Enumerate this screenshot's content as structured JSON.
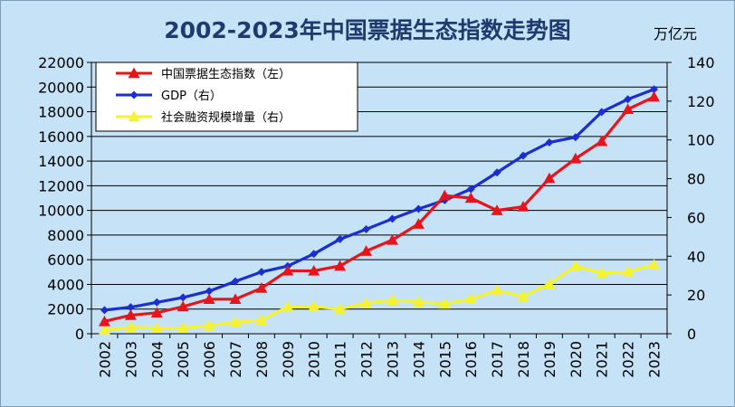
{
  "chart_data": {
    "type": "line",
    "title": "2002-2023年中国票据生态指数走势图",
    "right_axis_unit": "万亿元",
    "categories": [
      "2002",
      "2003",
      "2004",
      "2005",
      "2006",
      "2007",
      "2008",
      "2009",
      "2010",
      "2011",
      "2012",
      "2013",
      "2014",
      "2015",
      "2016",
      "2017",
      "2018",
      "2019",
      "2020",
      "2021",
      "2022",
      "2023"
    ],
    "left_axis": {
      "min": 0,
      "max": 22000,
      "step": 2000,
      "ticks": [
        "0",
        "2000",
        "4000",
        "6000",
        "8000",
        "10000",
        "12000",
        "14000",
        "16000",
        "18000",
        "20000",
        "22000"
      ]
    },
    "right_axis": {
      "min": 0,
      "max": 140,
      "step": 20,
      "ticks": [
        "0",
        "20",
        "40",
        "60",
        "80",
        "100",
        "120",
        "140"
      ]
    },
    "grid": true,
    "legend_position": "top-left",
    "series": [
      {
        "name": "中国票据生态指数（左）",
        "axis": "left",
        "color": "#e8141b",
        "marker": "triangle",
        "values": [
          1000,
          1500,
          1700,
          2200,
          2800,
          2800,
          3700,
          5100,
          5100,
          5500,
          6700,
          7600,
          8900,
          11200,
          11000,
          10000,
          10300,
          12600,
          14200,
          15600,
          18200,
          19200
        ]
      },
      {
        "name": "GDP（右）",
        "axis": "right",
        "color": "#1a2ed1",
        "marker": "diamond",
        "values": [
          12.2,
          13.7,
          16.2,
          18.7,
          22.0,
          27.0,
          31.9,
          34.9,
          41.2,
          48.8,
          53.9,
          59.3,
          64.4,
          68.9,
          74.6,
          83.2,
          91.9,
          98.7,
          101.4,
          114.4,
          121.0,
          126.1
        ]
      },
      {
        "name": "社会融资规模增量（右）",
        "axis": "right",
        "color": "#f5f230",
        "marker": "triangle",
        "values": [
          2.0,
          3.4,
          2.9,
          3.0,
          4.3,
          6.0,
          7.0,
          13.9,
          14.0,
          12.8,
          15.8,
          17.3,
          16.5,
          15.4,
          17.8,
          22.4,
          19.3,
          25.7,
          34.9,
          31.4,
          32.0,
          35.6
        ]
      }
    ]
  }
}
